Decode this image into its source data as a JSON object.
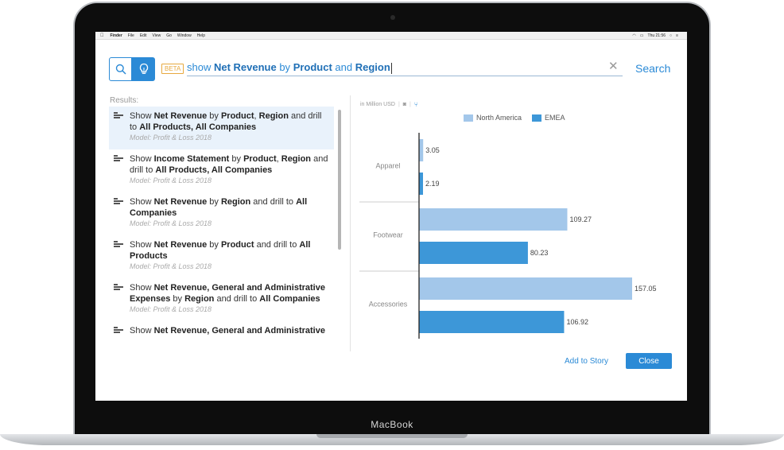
{
  "device": {
    "label": "MacBook"
  },
  "menubar": {
    "apple_icon": "apple-icon",
    "items": [
      "Finder",
      "File",
      "Edit",
      "View",
      "Go",
      "Window",
      "Help"
    ],
    "clock": "Thu 21:56",
    "status_icons": [
      "wifi-icon",
      "battery-icon",
      "spotlight-icon",
      "menu-icon"
    ]
  },
  "search": {
    "badge": "BETA",
    "query_segments": [
      {
        "text": "show ",
        "bold": false
      },
      {
        "text": "Net Revenue",
        "bold": true
      },
      {
        "text": " by ",
        "bold": false
      },
      {
        "text": "Product",
        "bold": true
      },
      {
        "text": " and ",
        "bold": false
      },
      {
        "text": "Region",
        "bold": true
      }
    ],
    "clear_glyph": "✕",
    "search_label": "Search",
    "accent_color": "#2b8ad6"
  },
  "results": {
    "label": "Results:",
    "items": [
      {
        "selected": true,
        "title": [
          {
            "t": "Show ",
            "b": false
          },
          {
            "t": "Net Revenue",
            "b": true
          },
          {
            "t": " by ",
            "b": false
          },
          {
            "t": "Product",
            "b": true
          },
          {
            "t": ", ",
            "b": false
          },
          {
            "t": "Region",
            "b": true
          },
          {
            "t": " and drill to ",
            "b": false
          },
          {
            "t": "All Products, All Companies",
            "b": true
          }
        ],
        "model": "Model: Profit & Loss 2018"
      },
      {
        "selected": false,
        "title": [
          {
            "t": "Show ",
            "b": false
          },
          {
            "t": "Income Statement",
            "b": true
          },
          {
            "t": " by ",
            "b": false
          },
          {
            "t": "Product",
            "b": true
          },
          {
            "t": ", ",
            "b": false
          },
          {
            "t": "Region",
            "b": true
          },
          {
            "t": " and drill to ",
            "b": false
          },
          {
            "t": "All Products, All Companies",
            "b": true
          }
        ],
        "model": "Model: Profit & Loss 2018"
      },
      {
        "selected": false,
        "title": [
          {
            "t": "Show ",
            "b": false
          },
          {
            "t": "Net Revenue",
            "b": true
          },
          {
            "t": " by ",
            "b": false
          },
          {
            "t": "Region",
            "b": true
          },
          {
            "t": " and drill to ",
            "b": false
          },
          {
            "t": "All Companies",
            "b": true
          }
        ],
        "model": "Model: Profit & Loss 2018"
      },
      {
        "selected": false,
        "title": [
          {
            "t": "Show ",
            "b": false
          },
          {
            "t": "Net Revenue",
            "b": true
          },
          {
            "t": " by ",
            "b": false
          },
          {
            "t": "Product",
            "b": true
          },
          {
            "t": " and drill to ",
            "b": false
          },
          {
            "t": "All Products",
            "b": true
          }
        ],
        "model": "Model: Profit & Loss 2018"
      },
      {
        "selected": false,
        "title": [
          {
            "t": "Show ",
            "b": false
          },
          {
            "t": "Net Revenue, General and Administrative Expenses",
            "b": true
          },
          {
            "t": " by ",
            "b": false
          },
          {
            "t": "Region",
            "b": true
          },
          {
            "t": " and drill to ",
            "b": false
          },
          {
            "t": "All Companies",
            "b": true
          }
        ],
        "model": "Model: Profit & Loss 2018"
      },
      {
        "selected": false,
        "title": [
          {
            "t": "Show ",
            "b": false
          },
          {
            "t": "Net Revenue, General and Administrative",
            "b": true
          }
        ],
        "model": ""
      }
    ]
  },
  "chart_header": {
    "units": "in Million USD",
    "icons": [
      "camera-icon",
      "hierarchy-icon"
    ]
  },
  "chart_data": {
    "type": "bar",
    "orientation": "horizontal",
    "categories": [
      "Apparel",
      "Footwear",
      "Accessories"
    ],
    "series": [
      {
        "name": "North America",
        "color": "#a3c7ea",
        "values": [
          3.05,
          109.27,
          157.05
        ]
      },
      {
        "name": "EMEA",
        "color": "#3d97d8",
        "values": [
          2.19,
          80.23,
          106.92
        ]
      }
    ],
    "legend_position": "top",
    "xlim": [
      0,
      157.05
    ],
    "grid": false
  },
  "actions": {
    "add_to_story": "Add to Story",
    "close": "Close"
  }
}
